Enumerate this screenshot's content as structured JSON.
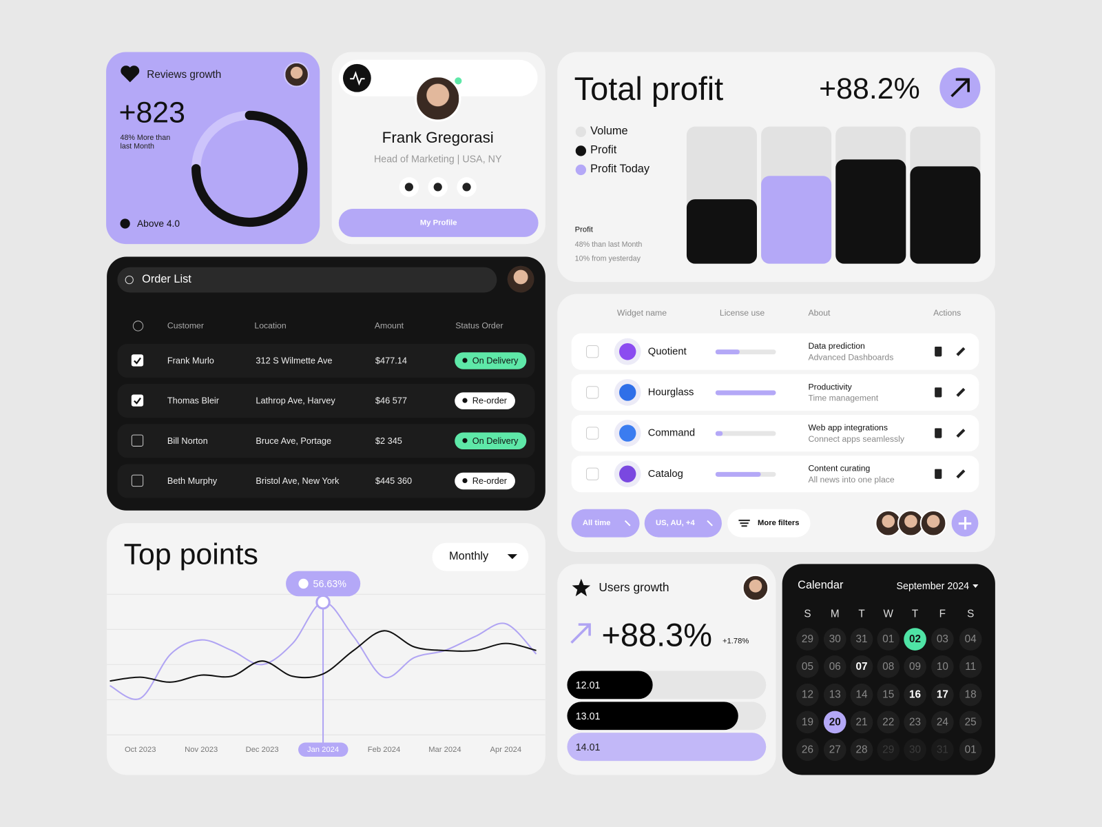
{
  "reviews_card": {
    "title": "Reviews growth",
    "value": "+823",
    "note": "48% More than last Month",
    "legend": "Above 4.0",
    "ring": {
      "value": 75,
      "range": [
        0,
        100
      ],
      "color": "#111111",
      "track_color": "#cdc4fb"
    }
  },
  "profile_card": {
    "name": "Frank Gregorasi",
    "role": "Head of Marketing | USA, NY",
    "button": "My Profile"
  },
  "profit_card": {
    "title": "Total profit",
    "change": "+88.2%",
    "legend": [
      {
        "name": "Volume",
        "color": "#e2e2e2"
      },
      {
        "name": "Profit",
        "color": "#111111"
      },
      {
        "name": "Profit Today",
        "color": "#b4a8f7"
      }
    ],
    "note_title": "Profit",
    "note_lines": [
      "48% than last Month",
      "10% from yesterday"
    ],
    "bars": {
      "values": [
        47,
        64,
        76,
        71
      ],
      "colors": [
        "#111111",
        "#b4a8f7",
        "#111111",
        "#111111"
      ],
      "ylim": [
        0,
        100
      ]
    }
  },
  "order_list": {
    "search": "Order List",
    "columns": [
      "Customer",
      "Location",
      "Amount",
      "Status Order"
    ],
    "rows": [
      {
        "checked": true,
        "customer": "Frank Murlo",
        "location": "312 S Wilmette Ave",
        "amount": "$477.14",
        "status": "On Delivery",
        "status_color": "#5ee8a8"
      },
      {
        "checked": true,
        "customer": "Thomas  Bleir",
        "location": "Lathrop Ave, Harvey",
        "amount": "$46 577",
        "status": "Re-order",
        "status_color": "#ffffff"
      },
      {
        "checked": false,
        "customer": "Bill Norton",
        "location": "Bruce Ave, Portage",
        "amount": "$2 345",
        "status": "On Delivery",
        "status_color": "#5ee8a8"
      },
      {
        "checked": false,
        "customer": "Beth Murphy",
        "location": "Bristol Ave, New York",
        "amount": "$445 360",
        "status": "Re-order",
        "status_color": "#ffffff"
      }
    ]
  },
  "widgets": {
    "columns": [
      "Widget name",
      "License use",
      "About",
      "Actions"
    ],
    "license_range": [
      0,
      100
    ],
    "rows": [
      {
        "name": "Quotient",
        "license": 40,
        "about": "Data prediction",
        "about_sub": "Advanced Dashboards",
        "icon_color": "#8b4cf0"
      },
      {
        "name": "Hourglass",
        "license": 100,
        "about": "Productivity",
        "about_sub": "Time management",
        "icon_color": "#2f6fe8"
      },
      {
        "name": "Command",
        "license": 12,
        "about": "Web app integrations",
        "about_sub": "Connect apps seamlessly",
        "icon_color": "#3b7cf0"
      },
      {
        "name": "Catalog",
        "license": 75,
        "about": "Content curating",
        "about_sub": "All news into one place",
        "icon_color": "#7a48e0"
      }
    ],
    "filters": [
      "All time",
      "US, AU, +4"
    ],
    "more_filters": "More filters"
  },
  "top_points": {
    "title": "Top points",
    "period": "Monthly",
    "chart": {
      "type": "line",
      "x": [
        -0.5,
        0,
        0.5,
        1,
        1.5,
        2,
        2.5,
        3,
        3.5,
        4,
        4.5,
        5,
        5.5,
        6,
        6.5
      ],
      "xlim": [
        -0.55,
        6.65
      ],
      "xticks": [
        {
          "value": 0,
          "label": "Oct 2023"
        },
        {
          "value": 1,
          "label": "Nov 2023"
        },
        {
          "value": 2,
          "label": "Dec 2023"
        },
        {
          "value": 3,
          "label": "Jan 2024"
        },
        {
          "value": 4,
          "label": "Feb 2024"
        },
        {
          "value": 5,
          "label": "Mar 2024"
        },
        {
          "value": 6,
          "label": "Apr 2024"
        }
      ],
      "ylim": [
        0,
        60
      ],
      "yticks": [
        0,
        15,
        30,
        45,
        60
      ],
      "grid": true,
      "series": [
        {
          "color": "#b0a4f3",
          "values": [
            21,
            15.6,
            34.5,
            40.5,
            36,
            30,
            39,
            56.63,
            42,
            24.6,
            33,
            36,
            42,
            47.4,
            34.5
          ]
        },
        {
          "color": "#111111",
          "values": [
            23,
            24.6,
            22.5,
            25.5,
            25,
            31.5,
            25,
            26,
            36,
            44.4,
            37.5,
            36,
            36,
            39,
            36
          ]
        }
      ],
      "tooltip": {
        "x": 3,
        "value": 56.63,
        "label": "56.63%"
      }
    }
  },
  "users_growth": {
    "title": "Users growth",
    "value": "+88.3%",
    "change": "+1.78%",
    "bars": {
      "categories": [
        "12.01",
        "13.01",
        "14.01"
      ],
      "values": [
        43,
        86,
        100
      ],
      "colors": [
        "#000000",
        "#000000",
        "#c2b8f8"
      ],
      "xlim": [
        0,
        100
      ]
    }
  },
  "calendar": {
    "title": "Calendar",
    "month": "September 2024",
    "weekdays": [
      "S",
      "M",
      "T",
      "W",
      "T",
      "F",
      "S"
    ],
    "days": [
      {
        "label": "29",
        "state": "normal"
      },
      {
        "label": "30",
        "state": "normal"
      },
      {
        "label": "31",
        "state": "normal"
      },
      {
        "label": "01",
        "state": "normal"
      },
      {
        "label": "02",
        "state": "green"
      },
      {
        "label": "03",
        "state": "normal"
      },
      {
        "label": "04",
        "state": "normal"
      },
      {
        "label": "05",
        "state": "normal"
      },
      {
        "label": "06",
        "state": "normal"
      },
      {
        "label": "07",
        "state": "bold"
      },
      {
        "label": "08",
        "state": "normal"
      },
      {
        "label": "09",
        "state": "normal"
      },
      {
        "label": "10",
        "state": "normal"
      },
      {
        "label": "11",
        "state": "normal"
      },
      {
        "label": "12",
        "state": "normal"
      },
      {
        "label": "13",
        "state": "normal"
      },
      {
        "label": "14",
        "state": "normal"
      },
      {
        "label": "15",
        "state": "normal"
      },
      {
        "label": "16",
        "state": "bold"
      },
      {
        "label": "17",
        "state": "bold"
      },
      {
        "label": "18",
        "state": "normal"
      },
      {
        "label": "19",
        "state": "normal"
      },
      {
        "label": "20",
        "state": "purple"
      },
      {
        "label": "21",
        "state": "normal"
      },
      {
        "label": "22",
        "state": "normal"
      },
      {
        "label": "23",
        "state": "normal"
      },
      {
        "label": "24",
        "state": "normal"
      },
      {
        "label": "25",
        "state": "normal"
      },
      {
        "label": "26",
        "state": "normal"
      },
      {
        "label": "27",
        "state": "normal"
      },
      {
        "label": "28",
        "state": "normal"
      },
      {
        "label": "29",
        "state": "faded"
      },
      {
        "label": "30",
        "state": "faded"
      },
      {
        "label": "31",
        "state": "faded"
      },
      {
        "label": "01",
        "state": "normal"
      }
    ]
  }
}
